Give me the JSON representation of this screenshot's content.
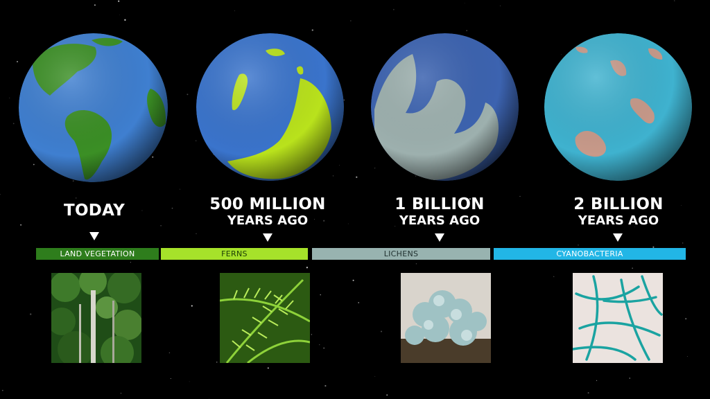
{
  "stages": [
    {
      "id": "today",
      "label_line1": "TODAY",
      "label_line2": "",
      "bar_label": "LAND VEGETATION",
      "bar_color": "#2e7d1c",
      "bar_text_color": "#ffffff",
      "ocean_color": "#3f7fd0",
      "land_color": "#3b8f25"
    },
    {
      "id": "500m",
      "label_line1": "500 MILLION",
      "label_line2": "YEARS AGO",
      "bar_label": "FERNS",
      "bar_color": "#a6e22a",
      "bar_text_color": "#1b3b05",
      "ocean_color": "#3a74cc",
      "land_color": "#b9e21c"
    },
    {
      "id": "1b",
      "label_line1": "1 BILLION",
      "label_line2": "YEARS AGO",
      "bar_label": "LICHENS",
      "bar_color": "#98b3b0",
      "bar_text_color": "#1f2f2e",
      "ocean_color": "#3c63b0",
      "land_color": "#9db0ae"
    },
    {
      "id": "2b",
      "label_line1": "2 BILLION",
      "label_line2": "YEARS AGO",
      "bar_label": "CYANOBACTERIA",
      "bar_color": "#22b6e6",
      "bar_text_color": "#ffffff",
      "ocean_color": "#3fb2cf",
      "land_color": "#c89a8a"
    }
  ]
}
